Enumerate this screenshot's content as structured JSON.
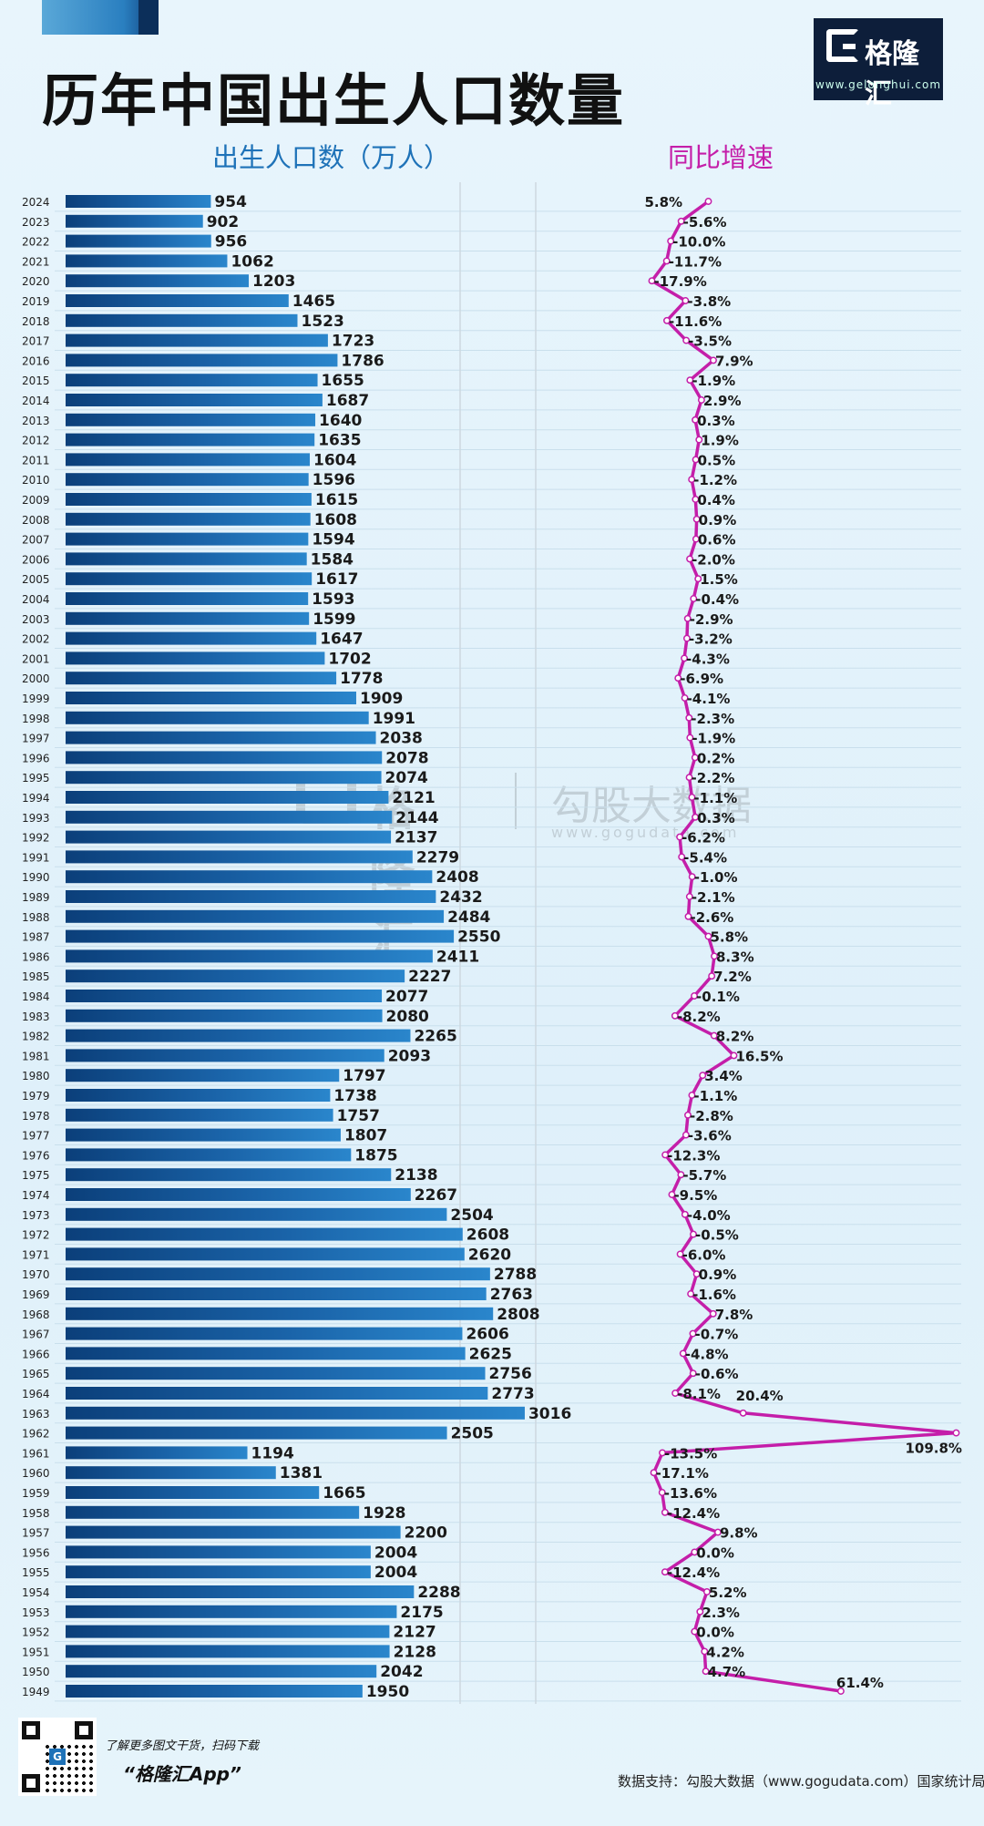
{
  "header": {
    "title": "历年中国出生人口数量"
  },
  "logo": {
    "name": "格隆汇",
    "url": "www.gelonghui.com"
  },
  "watermark": {
    "brand_a": "格隆汇",
    "brand_b": "勾股大数据",
    "url": "www.gogudata.com"
  },
  "footer": {
    "promo_text": "了解更多图文干货，扫码下载",
    "app_name": "“格隆汇App”",
    "source": "数据支持：勾股大数据（www.gogudata.com）国家统计局"
  },
  "colors": {
    "bar": "#1e72b8",
    "bar_dark": "#0b3f7a",
    "line": "#c41ea9",
    "title_left": "#1e72b8",
    "title_right": "#c41ea9"
  },
  "chart_data": {
    "type": "bar",
    "orientation": "horizontal",
    "title": "历年中国出生人口数量",
    "bar_series_name": "出生人口数（万人）",
    "line_series_name": "同比增速",
    "xlim": [
      0,
      3100
    ],
    "growth_range": [
      -20,
      110
    ],
    "categories": [
      "2024",
      "2023",
      "2022",
      "2021",
      "2020",
      "2019",
      "2018",
      "2017",
      "2016",
      "2015",
      "2014",
      "2013",
      "2012",
      "2011",
      "2010",
      "2009",
      "2008",
      "2007",
      "2006",
      "2005",
      "2004",
      "2003",
      "2002",
      "2001",
      "2000",
      "1999",
      "1998",
      "1997",
      "1996",
      "1995",
      "1994",
      "1993",
      "1992",
      "1991",
      "1990",
      "1989",
      "1988",
      "1987",
      "1986",
      "1985",
      "1984",
      "1983",
      "1982",
      "1981",
      "1980",
      "1979",
      "1978",
      "1977",
      "1976",
      "1975",
      "1974",
      "1973",
      "1972",
      "1971",
      "1970",
      "1969",
      "1968",
      "1967",
      "1966",
      "1965",
      "1964",
      "1963",
      "1962",
      "1961",
      "1960",
      "1959",
      "1958",
      "1957",
      "1956",
      "1955",
      "1954",
      "1953",
      "1952",
      "1951",
      "1950",
      "1949"
    ],
    "values": [
      954,
      902,
      956,
      1062,
      1203,
      1465,
      1523,
      1723,
      1786,
      1655,
      1687,
      1640,
      1635,
      1604,
      1596,
      1615,
      1608,
      1594,
      1584,
      1617,
      1593,
      1599,
      1647,
      1702,
      1778,
      1909,
      1991,
      2038,
      2078,
      2074,
      2121,
      2144,
      2137,
      2279,
      2408,
      2432,
      2484,
      2550,
      2411,
      2227,
      2077,
      2080,
      2265,
      2093,
      1797,
      1738,
      1757,
      1807,
      1875,
      2138,
      2267,
      2504,
      2608,
      2620,
      2788,
      2763,
      2808,
      2606,
      2625,
      2756,
      2773,
      3016,
      2505,
      1194,
      1381,
      1665,
      1928,
      2200,
      2004,
      2004,
      2288,
      2175,
      2127,
      2128,
      2042,
      1950
    ],
    "growth": [
      5.8,
      -5.6,
      -10.0,
      -11.7,
      -17.9,
      -3.8,
      -11.6,
      -3.5,
      7.9,
      -1.9,
      2.9,
      0.3,
      1.9,
      0.5,
      -1.2,
      0.4,
      0.9,
      0.6,
      -2.0,
      1.5,
      -0.4,
      -2.9,
      -3.2,
      -4.3,
      -6.9,
      -4.1,
      -2.3,
      -1.9,
      0.2,
      -2.2,
      -1.1,
      0.3,
      -6.2,
      -5.4,
      -1.0,
      -2.1,
      -2.6,
      5.8,
      8.3,
      7.2,
      -0.1,
      -8.2,
      8.2,
      16.5,
      3.4,
      -1.1,
      -2.8,
      -3.6,
      -12.3,
      -5.7,
      -9.5,
      -4.0,
      -0.5,
      -6.0,
      0.9,
      -1.6,
      7.8,
      -0.7,
      -4.8,
      -0.6,
      -8.1,
      20.4,
      109.8,
      -13.5,
      -17.1,
      -13.6,
      -12.4,
      9.8,
      0.0,
      -12.4,
      5.2,
      2.3,
      0.0,
      4.2,
      4.7,
      null
    ],
    "growth_labels": [
      "5.8%",
      "-5.6%",
      "-10.0%",
      "-11.7%",
      "-17.9%",
      "-3.8%",
      "-11.6%",
      "-3.5%",
      "7.9%",
      "-1.9%",
      "2.9%",
      "0.3%",
      "1.9%",
      "0.5%",
      "-1.2%",
      "0.4%",
      "0.9%",
      "0.6%",
      "-2.0%",
      "1.5%",
      "-0.4%",
      "-2.9%",
      "-3.2%",
      "-4.3%",
      "-6.9%",
      "-4.1%",
      "-2.3%",
      "-1.9%",
      "0.2%",
      "-2.2%",
      "-1.1%",
      "0.3%",
      "-6.2%",
      "-5.4%",
      "-1.0%",
      "-2.1%",
      "-2.6%",
      "5.8%",
      "8.3%",
      "7.2%",
      "-0.1%",
      "-8.2%",
      "8.2%",
      "16.5%",
      "3.4%",
      "-1.1%",
      "-2.8%",
      "-3.6%",
      "-12.3%",
      "-5.7%",
      "-9.5%",
      "-4.0%",
      "-0.5%",
      "-6.0%",
      "0.9%",
      "-1.6%",
      "7.8%",
      "-0.7%",
      "-4.8%",
      "-0.6%",
      "-8.1%",
      "20.4%",
      "109.8%",
      "-13.5%",
      "-17.1%",
      "-13.6%",
      "-12.4%",
      "9.8%",
      "0.0%",
      "-12.4%",
      "5.2%",
      "2.3%",
      "0.0%",
      "4.2%",
      "4.7%",
      "61.4%"
    ],
    "xlabel": "",
    "ylabel": ""
  }
}
